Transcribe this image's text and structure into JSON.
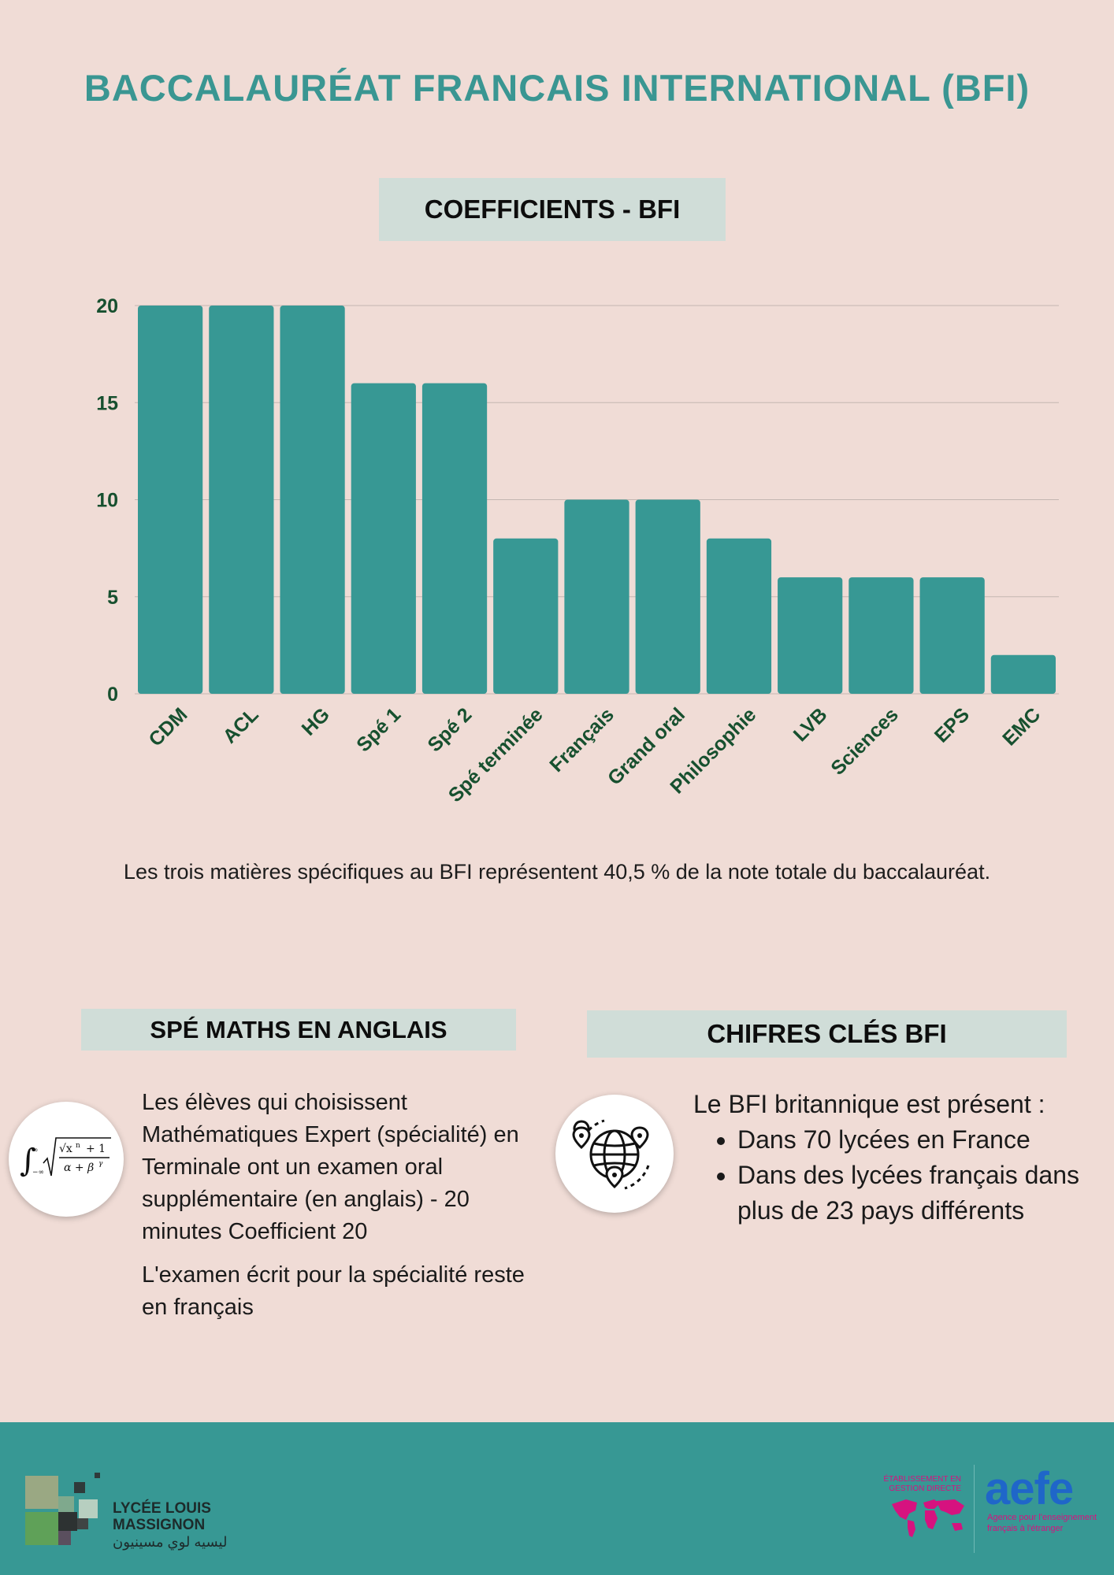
{
  "title": "BACCALAURÉAT FRANCAIS INTERNATIONAL (BFI)",
  "coeff_section": "COEFFICIENTS - BFI",
  "chart_data": {
    "type": "bar",
    "categories": [
      "CDM",
      "ACL",
      "HG",
      "Spé 1",
      "Spé 2",
      "Spé terminée",
      "Français",
      "Grand oral",
      "Philosophie",
      "LVB",
      "Sciences",
      "EPS",
      "EMC"
    ],
    "values": [
      20,
      20,
      20,
      16,
      16,
      8,
      10,
      10,
      8,
      6,
      6,
      6,
      2
    ],
    "yticks": [
      0,
      5,
      10,
      15,
      20
    ],
    "ylim": [
      0,
      20
    ],
    "grid": true,
    "xlabel": "",
    "ylabel": "",
    "bar_color": "#379894",
    "label_color": "#17502f"
  },
  "note": "Les trois matières spécifiques au BFI représentent 40,5 % de la note totale du baccalauréat.",
  "maths": {
    "heading": "SPÉ MATHS EN ANGLAIS",
    "paragraph1": "Les élèves qui choisissent Mathématiques Expert (spécialité) en Terminale ont un examen oral supplémentaire (en anglais) - 20 minutes Coefficient 20",
    "paragraph2": "L'examen écrit pour la spécialité reste en français",
    "icon": "integral-formula-icon"
  },
  "chiffres": {
    "heading": "CHIFRES CLÉS BFI",
    "intro": "Le BFI britannique est présent :",
    "items": [
      "Dans 70 lycées en France",
      "Dans des lycées français dans plus de 23 pays différents"
    ],
    "icon": "globe-location-icon"
  },
  "footer": {
    "lycee_line1": "LYCÉE LOUIS",
    "lycee_line2": "MASSIGNON",
    "lycee_arabic": "ليسيه لوي مسينيون",
    "aefe_etab": "ÉTABLISSEMENT EN GESTION DIRECTE",
    "aefe_word": "aefe",
    "aefe_sub": "Agence pour l'enseignement français à l'étranger",
    "color": "#379894"
  }
}
